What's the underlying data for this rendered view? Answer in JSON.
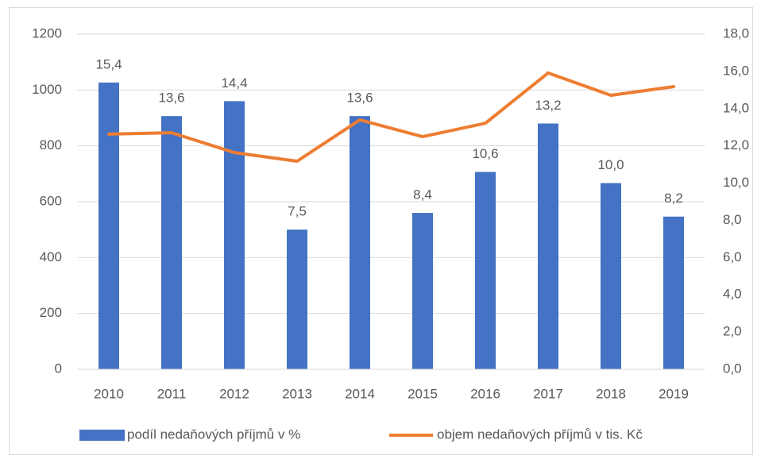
{
  "chart_data": {
    "type": "bar-line",
    "categories": [
      "2010",
      "2011",
      "2012",
      "2013",
      "2014",
      "2015",
      "2016",
      "2017",
      "2018",
      "2019"
    ],
    "series": [
      {
        "name": "podíl nedaňových příjmů v %",
        "type": "bar",
        "axis": "y2",
        "color": "#4472c4",
        "values": [
          15.4,
          13.6,
          14.4,
          7.5,
          13.6,
          8.4,
          10.6,
          13.2,
          10.0,
          8.2
        ],
        "value_labels": [
          "15,4",
          "13,6",
          "14,4",
          "7,5",
          "13,6",
          "8,4",
          "10,6",
          "13,2",
          "10,0",
          "8,2"
        ]
      },
      {
        "name": "objem nedaňových příjmů v tis. Kč",
        "type": "line",
        "color": "#ed7d31",
        "values": [
          842,
          847,
          776,
          745,
          893,
          833,
          881,
          1061,
          981,
          1012
        ]
      }
    ],
    "ylim": [
      0,
      1200
    ],
    "yticks": [
      0,
      200,
      400,
      600,
      800,
      1000,
      1200
    ],
    "y2lim": [
      0,
      18
    ],
    "y2ticks": [
      {
        "value": 0,
        "label": "0,0"
      },
      {
        "value": 2,
        "label": "2,0"
      },
      {
        "value": 4,
        "label": "4,0"
      },
      {
        "value": 6,
        "label": "6,0"
      },
      {
        "value": 8,
        "label": "8,0"
      },
      {
        "value": 10,
        "label": "10,0"
      },
      {
        "value": 12,
        "label": "12,0"
      },
      {
        "value": 14,
        "label": "14,0"
      },
      {
        "value": 16,
        "label": "16,0"
      },
      {
        "value": 18,
        "label": "18,0"
      }
    ],
    "grid": true,
    "legend": "bottom"
  }
}
